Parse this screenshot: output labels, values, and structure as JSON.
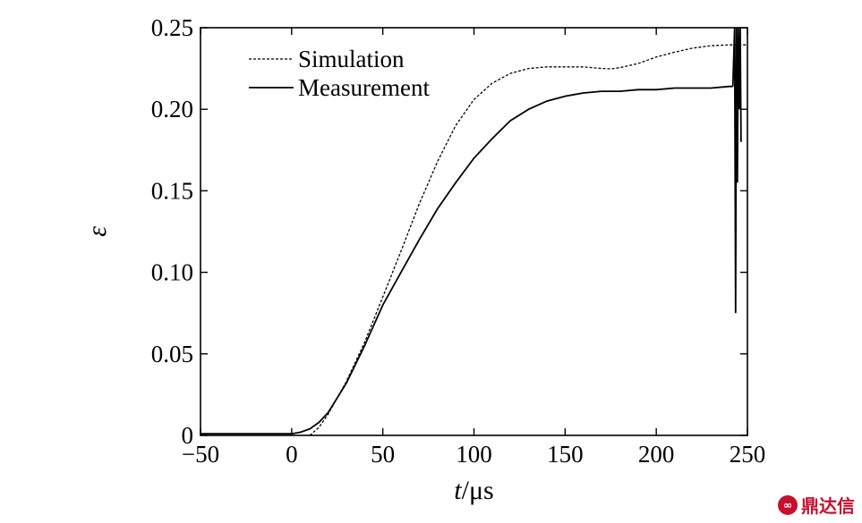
{
  "chart_data": {
    "type": "line",
    "xlabel": "t/μs",
    "ylabel": "ε",
    "xlim": [
      -50,
      250
    ],
    "ylim": [
      0,
      0.25
    ],
    "xticks": [
      -50,
      0,
      50,
      100,
      150,
      200,
      250
    ],
    "xtick_labels": [
      "−50",
      "0",
      "50",
      "100",
      "150",
      "200",
      "250"
    ],
    "yticks": [
      0,
      0.05,
      0.1,
      0.15,
      0.2,
      0.25
    ],
    "ytick_labels": [
      "0",
      "0.05",
      "0.10",
      "0.15",
      "0.20",
      "0.25"
    ],
    "legend_position": "top-left",
    "series": [
      {
        "name": "Simulation",
        "style": "dashed",
        "x": [
          10,
          15,
          20,
          30,
          40,
          50,
          60,
          70,
          80,
          90,
          100,
          110,
          120,
          130,
          140,
          150,
          160,
          170,
          175,
          180,
          190,
          200,
          210,
          220,
          230,
          240,
          250
        ],
        "y": [
          0,
          0.005,
          0.013,
          0.033,
          0.057,
          0.085,
          0.113,
          0.142,
          0.168,
          0.19,
          0.206,
          0.216,
          0.222,
          0.225,
          0.226,
          0.226,
          0.226,
          0.225,
          0.2248,
          0.2255,
          0.228,
          0.232,
          0.235,
          0.2375,
          0.239,
          0.2395,
          0.2395
        ]
      },
      {
        "name": "Measurement",
        "style": "solid",
        "x": [
          -50,
          -30,
          -10,
          0,
          5,
          10,
          15,
          20,
          30,
          40,
          50,
          60,
          70,
          80,
          90,
          100,
          110,
          120,
          130,
          140,
          150,
          160,
          170,
          180,
          190,
          200,
          210,
          220,
          230,
          240,
          242
        ],
        "y": [
          0.001,
          0.001,
          0.001,
          0.001,
          0.002,
          0.004,
          0.008,
          0.014,
          0.032,
          0.055,
          0.08,
          0.1,
          0.12,
          0.139,
          0.155,
          0.17,
          0.182,
          0.193,
          0.2,
          0.205,
          0.208,
          0.21,
          0.211,
          0.211,
          0.212,
          0.212,
          0.213,
          0.213,
          0.213,
          0.214,
          0.214
        ]
      },
      {
        "name": "",
        "style": "solid",
        "x": [
          242,
          243,
          243.5,
          244,
          244.5,
          245,
          245.5,
          246,
          246.5
        ],
        "y": [
          0.214,
          0.25,
          0.075,
          0.25,
          0.155,
          0.25,
          0.2,
          0.25,
          0.18
        ]
      }
    ]
  },
  "watermark": {
    "logo": "∞",
    "text": "鼎达信"
  }
}
